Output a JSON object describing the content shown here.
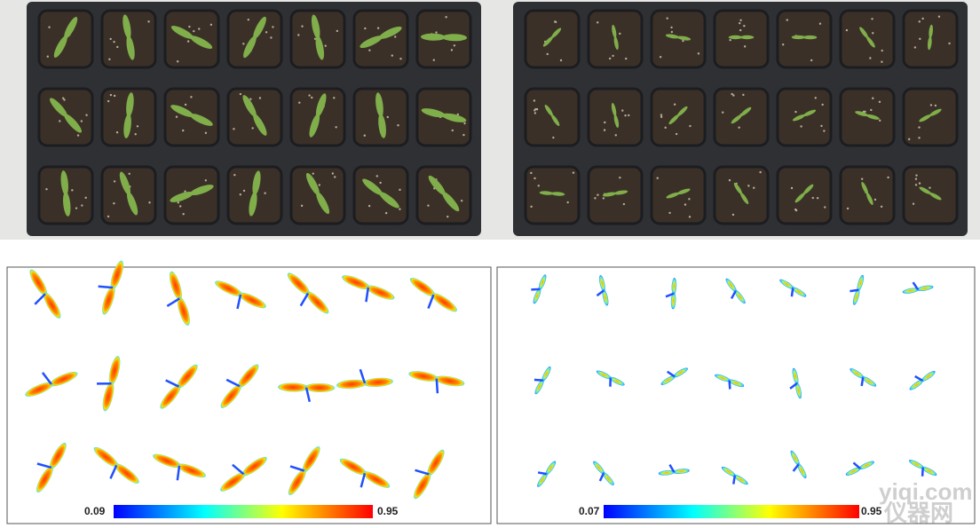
{
  "left_panel": {
    "colorbar": {
      "min_label": "0.09",
      "max_label": "0.95"
    }
  },
  "right_panel": {
    "colorbar": {
      "min_label": "0.07",
      "max_label": "0.95"
    }
  },
  "watermark": {
    "site": "yiqi.com",
    "name": "仪器网"
  }
}
